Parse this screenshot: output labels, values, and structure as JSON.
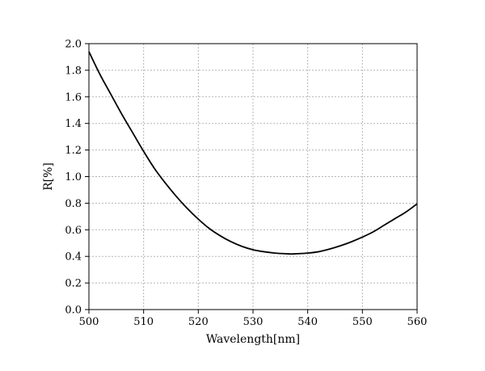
{
  "chart_data": {
    "type": "line",
    "title": "",
    "xlabel": "Wavelength[nm]",
    "ylabel": "R[%]",
    "xlim": [
      500,
      560
    ],
    "ylim": [
      0,
      2.0
    ],
    "grid": true,
    "legend": "none",
    "x_ticks": [
      "500",
      "510",
      "520",
      "530",
      "540",
      "550",
      "560"
    ],
    "y_ticks": [
      "0.0",
      "0.2",
      "0.4",
      "0.6",
      "0.8",
      "1.0",
      "1.2",
      "1.4",
      "1.6",
      "1.8",
      "2.0"
    ],
    "series": [
      {
        "color": "#000000",
        "x": [
          500,
          502,
          504,
          506,
          508,
          510,
          512,
          514,
          516,
          518,
          520,
          522,
          524,
          526,
          528,
          530,
          532,
          534,
          536,
          537,
          538,
          540,
          542,
          544,
          546,
          548,
          550,
          552,
          554,
          556,
          558,
          560
        ],
        "y": [
          1.94,
          1.77,
          1.62,
          1.47,
          1.33,
          1.19,
          1.06,
          0.95,
          0.85,
          0.76,
          0.68,
          0.61,
          0.555,
          0.51,
          0.475,
          0.45,
          0.435,
          0.425,
          0.42,
          0.418,
          0.42,
          0.425,
          0.435,
          0.455,
          0.48,
          0.51,
          0.545,
          0.585,
          0.635,
          0.685,
          0.735,
          0.795
        ]
      }
    ]
  }
}
